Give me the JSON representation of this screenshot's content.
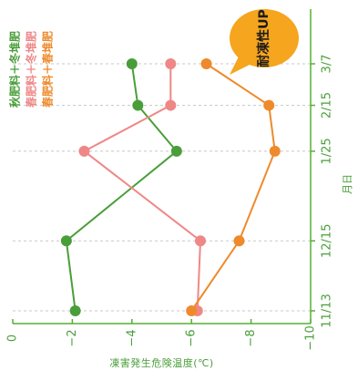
{
  "chart_data": {
    "type": "line",
    "xlabel": "凍害発生危険温度(℃)",
    "ylabel": "月日",
    "x_range": [
      0,
      -10
    ],
    "x_ticks": [
      0,
      -2,
      -4,
      -6,
      -8,
      -10
    ],
    "x_tick_labels": [
      "0",
      "−2",
      "−4",
      "−6",
      "−8",
      "−10"
    ],
    "categories": [
      "11/13",
      "12/15",
      "1/25",
      "2/15",
      "3/7"
    ],
    "categories_pos": [
      0,
      32,
      73,
      94,
      113
    ],
    "grid": "horizontal-dashed",
    "legend_position": "top-left",
    "series": [
      {
        "name": "秋肥料＋冬堆肥",
        "color": "#4a9e3a",
        "values": [
          -2.1,
          -1.8,
          -5.5,
          -4.2,
          -4.0
        ]
      },
      {
        "name": "春肥料＋冬堆肥",
        "color": "#ef8787",
        "values": [
          -6.2,
          -6.3,
          -2.4,
          -5.3,
          -5.3
        ]
      },
      {
        "name": "春肥料＋春堆肥",
        "color": "#ee8a2c",
        "values": [
          -6.0,
          -7.6,
          -8.8,
          -8.6,
          -6.5
        ]
      }
    ],
    "annotation": {
      "text": "耐凍性UP",
      "color": "#f5a51e"
    }
  },
  "colors": {
    "axis": "#55b034",
    "grid": "#c8c8c8",
    "text_green": "#4a9e3a"
  }
}
